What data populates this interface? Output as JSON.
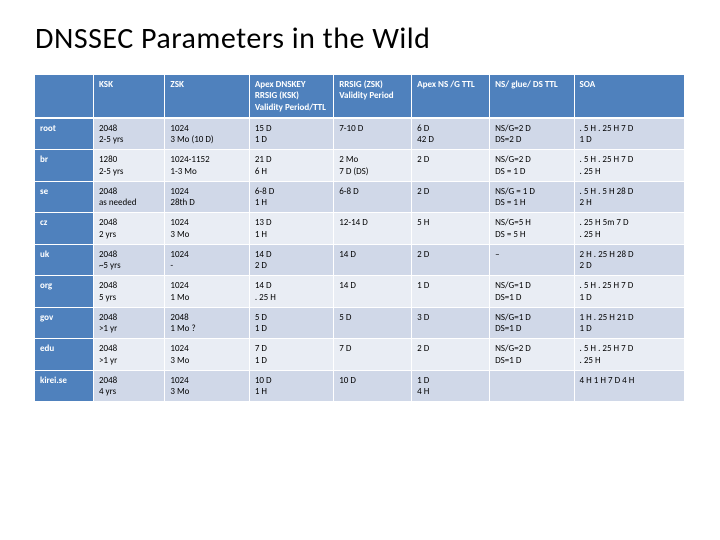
{
  "title": "DNSSEC Parameters in the Wild",
  "table": {
    "columns": [
      "",
      "KSK",
      "ZSK",
      "Apex DNSKEY RRSIG (KSK) Validity Period/TTL",
      "RRSIG (ZSK) Validity Period",
      "Apex NS /G TTL",
      "NS/ glue/ DS TTL",
      "SOA"
    ],
    "rows": [
      [
        "root",
        "2048\n2-5 yrs",
        "1024\n3 Mo (10 D)",
        "15 D\n1 D",
        "7-10 D",
        "6 D\n42 D",
        "NS/G=2 D\nDS=2 D",
        ". 5 H . 25 H 7 D\n1 D"
      ],
      [
        "br",
        "1280\n2-5 yrs",
        "1024-1152\n1-3 Mo",
        "21 D\n6 H",
        "2 Mo\n7 D (DS)",
        "2 D",
        "NS/G=2 D\nDS = 1 D",
        ". 5 H . 25 H 7 D\n. 25 H"
      ],
      [
        "se",
        "2048\nas needed",
        "1024\n28th D",
        "6-8 D\n1 H",
        "6-8 D",
        "2 D",
        "NS/G = 1 D\nDS = 1 H",
        ". 5 H . 5 H 28 D\n2 H"
      ],
      [
        "cz",
        "2048\n2 yrs",
        "1024\n3 Mo",
        "13 D\n1 H",
        "12-14 D",
        "5 H",
        "NS/G=5 H\nDS = 5 H",
        ". 25 H 5m 7 D\n. 25 H"
      ],
      [
        "uk",
        "2048\n~5 yrs",
        "1024\n-",
        "14 D\n2 D",
        "14 D",
        "2 D",
        "–",
        "2 H . 25 H 28 D\n2 D"
      ],
      [
        "org",
        "2048\n5 yrs",
        "1024\n1 Mo",
        "14 D\n. 25 H",
        "14 D",
        "1 D",
        "NS/G=1 D\nDS=1 D",
        ". 5 H . 25 H 7 D\n1 D"
      ],
      [
        "gov",
        "2048\n>1 yr",
        "2048\n1 Mo ?",
        "5 D\n1 D",
        "5 D",
        "3 D",
        "NS/G=1 D\nDS=1 D",
        "1 H . 25 H 21 D\n1 D"
      ],
      [
        "edu",
        "2048\n>1 yr",
        "1024\n3 Mo",
        "7 D\n1 D",
        "7 D",
        "2 D",
        "NS/G=2 D\nDS=1 D",
        ". 5 H . 25 H 7 D\n. 25 H"
      ],
      [
        "kirei.se",
        "2048\n4 yrs",
        "1024\n3 Mo",
        "10 D\n1 H",
        "10 D",
        "1 D\n4 H",
        "",
        "4 H 1 H 7 D 4 H"
      ]
    ],
    "header_bg": "#4f81bd",
    "band_light": "#d0d8e8",
    "band_lighter": "#e9edf4"
  }
}
